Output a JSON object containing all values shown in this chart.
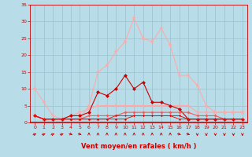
{
  "xlabel": "Vent moyen/en rafales ( km/h )",
  "background_color": "#b8dde8",
  "grid_color": "#90bcc8",
  "xlim": [
    -0.5,
    23.5
  ],
  "ylim": [
    0,
    35
  ],
  "yticks": [
    0,
    5,
    10,
    15,
    20,
    25,
    30,
    35
  ],
  "xticks": [
    0,
    1,
    2,
    3,
    4,
    5,
    6,
    7,
    8,
    9,
    10,
    11,
    12,
    13,
    14,
    15,
    16,
    17,
    18,
    19,
    20,
    21,
    22,
    23
  ],
  "series": [
    {
      "x": [
        0,
        1,
        2,
        3,
        4,
        5,
        6,
        7,
        8,
        9,
        10,
        11,
        12,
        13,
        14,
        15,
        16,
        17,
        18,
        19,
        20,
        21,
        22,
        23
      ],
      "y": [
        10,
        6,
        2,
        1,
        2,
        3,
        4,
        5,
        5,
        5,
        5,
        5,
        5,
        5,
        5,
        5,
        5,
        5,
        3,
        3,
        3,
        3,
        3,
        3
      ],
      "color": "#ffaaaa",
      "marker": "*",
      "linewidth": 0.8,
      "markersize": 4,
      "zorder": 2
    },
    {
      "x": [
        0,
        1,
        2,
        3,
        4,
        5,
        6,
        7,
        8,
        9,
        10,
        11,
        12,
        13,
        14,
        15,
        16,
        17,
        18,
        19,
        20,
        21,
        22,
        23
      ],
      "y": [
        2,
        1,
        1,
        1,
        1,
        1,
        5,
        15,
        17,
        21,
        24,
        31,
        25,
        24,
        28,
        23,
        14,
        14,
        11,
        5,
        3,
        3,
        3,
        3
      ],
      "color": "#ffaaaa",
      "marker": "*",
      "linewidth": 0.8,
      "markersize": 5,
      "zorder": 2
    },
    {
      "x": [
        0,
        1,
        2,
        3,
        4,
        5,
        6,
        7,
        8,
        9,
        10,
        11,
        12,
        13,
        14,
        15,
        16,
        17,
        18,
        19,
        20,
        21,
        22,
        23
      ],
      "y": [
        2,
        1,
        1,
        1,
        2,
        2,
        3,
        9,
        8,
        10,
        14,
        10,
        12,
        6,
        6,
        5,
        4,
        1,
        1,
        1,
        1,
        1,
        1,
        1
      ],
      "color": "#cc0000",
      "marker": "D",
      "linewidth": 0.8,
      "markersize": 2.5,
      "zorder": 3
    },
    {
      "x": [
        0,
        1,
        2,
        3,
        4,
        5,
        6,
        7,
        8,
        9,
        10,
        11,
        12,
        13,
        14,
        15,
        16,
        17,
        18,
        19,
        20,
        21,
        22,
        23
      ],
      "y": [
        2,
        1,
        1,
        1,
        1,
        1,
        2,
        2,
        2,
        2,
        3,
        3,
        3,
        3,
        3,
        3,
        3,
        3,
        2,
        2,
        2,
        1,
        1,
        1
      ],
      "color": "#ff5555",
      "marker": "D",
      "linewidth": 0.8,
      "markersize": 2,
      "zorder": 3
    },
    {
      "x": [
        0,
        1,
        2,
        3,
        4,
        5,
        6,
        7,
        8,
        9,
        10,
        11,
        12,
        13,
        14,
        15,
        16,
        17,
        18,
        19,
        20,
        21,
        22,
        23
      ],
      "y": [
        2,
        1,
        1,
        1,
        1,
        1,
        1,
        1,
        1,
        1,
        1,
        2,
        2,
        2,
        2,
        2,
        2,
        1,
        1,
        1,
        1,
        1,
        1,
        1
      ],
      "color": "#cc0000",
      "marker": "D",
      "linewidth": 0.6,
      "markersize": 1.5,
      "zorder": 3
    },
    {
      "x": [
        0,
        1,
        2,
        3,
        4,
        5,
        6,
        7,
        8,
        9,
        10,
        11,
        12,
        13,
        14,
        15,
        16,
        17,
        18,
        19,
        20,
        21,
        22,
        23
      ],
      "y": [
        2,
        1,
        1,
        1,
        1,
        1,
        1,
        1,
        1,
        2,
        2,
        2,
        2,
        2,
        2,
        2,
        1,
        1,
        1,
        1,
        1,
        1,
        1,
        1
      ],
      "color": "#ff0000",
      "marker": "D",
      "linewidth": 0.6,
      "markersize": 1.5,
      "zorder": 3
    }
  ],
  "wind_angles": [
    45,
    45,
    45,
    45,
    135,
    135,
    0,
    0,
    0,
    0,
    0,
    0,
    0,
    0,
    0,
    0,
    135,
    135,
    180,
    180,
    180,
    180,
    180,
    180
  ],
  "arrow_color": "#cc0000",
  "tick_color": "#cc0000",
  "spine_color": "#cc0000",
  "xlabel_color": "#cc0000",
  "xlabel_fontsize": 6,
  "tick_fontsize": 4.5
}
